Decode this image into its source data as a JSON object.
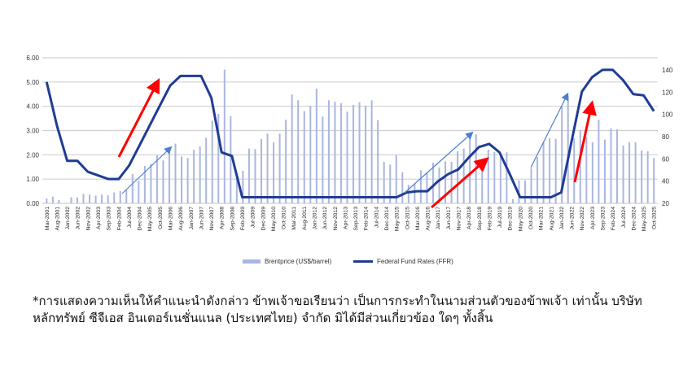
{
  "chart_data": {
    "type": "bar+line",
    "x_tick_labels": [
      "Mar-2001",
      "Aug-2001",
      "Jan-2002",
      "Jun-2002",
      "Nov-2002",
      "Apr-2003",
      "Sep-2003",
      "Feb-2004",
      "Jul-2004",
      "Dec-2004",
      "May-2005",
      "Oct-2005",
      "Mar-2006",
      "Aug-2006",
      "Jan-2007",
      "Jun-2007",
      "Nov-2007",
      "Apr-2008",
      "Sep-2008",
      "Feb-2009",
      "Jul-2009",
      "Dec-2009",
      "May-2010",
      "Oct-2010",
      "Mar-2011",
      "Aug-2011",
      "Jan-2012",
      "Jun-2012",
      "Nov-2012",
      "Apr-2013",
      "Sep-2013",
      "Feb-2014",
      "Jul-2014",
      "Dec-2014",
      "May-2015",
      "Oct-2015",
      "Mar-2016",
      "Aug-2016",
      "Jan-2017",
      "Jun-2017",
      "Nov-2017",
      "Apr-2018",
      "Sep-2018",
      "Feb-2019",
      "Jul-2019",
      "Dec-2019",
      "May-2020",
      "Oct-2020",
      "Mar-2021",
      "Aug-2021",
      "Jan-2022",
      "Jun-2022",
      "Nov-2022",
      "Apr-2023",
      "Sep-2023",
      "Feb-2024",
      "Jul-2024",
      "Dec-2024",
      "May-2025",
      "Oct-2025"
    ],
    "left_axis": {
      "ylim": [
        0,
        6
      ],
      "ticks": [
        "0.00",
        "1.00",
        "2.00",
        "3.00",
        "4.00",
        "5.00",
        "6.00"
      ]
    },
    "right_axis": {
      "ylim": [
        20,
        151
      ],
      "ticks": [
        "20",
        "40",
        "60",
        "80",
        "100",
        "120",
        "140"
      ]
    },
    "grid": true,
    "legend_position": "bottom",
    "series": [
      {
        "name": "Brentprice (US$/barrel)",
        "type": "bar",
        "axis": "right",
        "color": "#aab6e0",
        "values": [
          24.4,
          26,
          23,
          20,
          25.4,
          25.2,
          28.5,
          28,
          27,
          27.8,
          27.2,
          29.8,
          31,
          32,
          46.3,
          40.3,
          53.7,
          55.4,
          63.2,
          58.6,
          67.6,
          73.7,
          62.2,
          61,
          68.1,
          71.2,
          79,
          94.4,
          100.5,
          140.3,
          98.5,
          45.1,
          49.3,
          69.3,
          68.8,
          78,
          82.7,
          74.9,
          82.7,
          95.2,
          118,
          112.7,
          102.9,
          107.8,
          123.2,
          98.1,
          112.7,
          111.5,
          110.2,
          102.5,
          108.5,
          111,
          108,
          112.7,
          94.9,
          57.3,
          54.9,
          63.4,
          48,
          36.6,
          37.8,
          49.8,
          47.6,
          56.6,
          52.4,
          57.8,
          57.3,
          66.8,
          69.3,
          81,
          82.2,
          60,
          68.3,
          66.3,
          62.7,
          65.9,
          23.7,
          40.7,
          40.7,
          51.7,
          61.5,
          74.9,
          78.5,
          78,
          107.8,
          116.4,
          78.5,
          85.9,
          79.8,
          74.9,
          95.2,
          77.3,
          87.5,
          86.6,
          72,
          74.9,
          74.9,
          67.6,
          66.8,
          60.8
        ]
      },
      {
        "name": "Federal Fund Rates (FFR)",
        "type": "line",
        "axis": "left",
        "color": "#1f3c94",
        "values": [
          5.0,
          3.2,
          1.75,
          1.75,
          1.3,
          1.15,
          1.0,
          1.0,
          1.55,
          2.37,
          3.2,
          4.03,
          4.85,
          5.25,
          5.25,
          5.25,
          4.35,
          2.1,
          1.95,
          0.25,
          0.25,
          0.25,
          0.25,
          0.25,
          0.25,
          0.25,
          0.25,
          0.25,
          0.25,
          0.25,
          0.25,
          0.25,
          0.25,
          0.25,
          0.25,
          0.45,
          0.5,
          0.5,
          0.9,
          1.2,
          1.4,
          1.88,
          2.32,
          2.45,
          2.1,
          1.2,
          0.25,
          0.25,
          0.25,
          0.25,
          0.45,
          2.55,
          4.6,
          5.2,
          5.5,
          5.5,
          5.08,
          4.5,
          4.45,
          3.8
        ]
      }
    ],
    "annotations": {
      "red_arrow_color": "#ff0000",
      "blue_arrow_color": "#4a7fd0"
    }
  },
  "legend": {
    "brent_label": "Brentprice (US$/barrel)",
    "ffr_label": "Federal Fund Rates (FFR)"
  },
  "footnote": {
    "line1": "*การแสดงความเห็นให้คำแนะนำดังกล่าว ข้าพเจ้าขอเรียนว่า เป็นการกระทำในนามส่วนตัวของข้าพเจ้า เท่านั้น บริษัท",
    "line2": "หลักทรัพย์ ซีจีเอส อินเตอร์เนชั่นแนล (ประเทศไทย) จำกัด มิได้มีส่วนเกี่ยวข้อง ใดๆ ทั้งสิ้น"
  }
}
